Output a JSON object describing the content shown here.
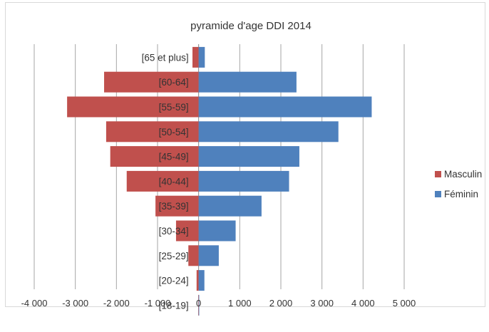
{
  "chart_data": {
    "type": "bar",
    "orientation": "horizontal",
    "title": "pyramide d'age DDI 2014",
    "categories": [
      "[65 et plus]",
      "[60-64]",
      "[55-59]",
      "[50-54]",
      "[45-49]",
      "[40-44]",
      "[35-39]",
      "[30-34]",
      "[25-29]",
      "[20-24]",
      "[18-19]"
    ],
    "series": [
      {
        "name": "Masculin",
        "color": "#c0504d",
        "values": [
          -150,
          -2300,
          -3200,
          -2250,
          -2150,
          -1750,
          -1050,
          -550,
          -250,
          -50,
          -10
        ]
      },
      {
        "name": "Féminin",
        "color": "#4f81bd",
        "values": [
          150,
          2380,
          4210,
          3400,
          2450,
          2200,
          1530,
          900,
          490,
          140,
          10
        ]
      }
    ],
    "xlim": [
      -4000,
      5000
    ],
    "xticks": [
      -4000,
      -3000,
      -2000,
      -1000,
      0,
      1000,
      2000,
      3000,
      4000,
      5000
    ],
    "xtick_labels": [
      "-4 000",
      "-3 000",
      "-2 000",
      "-1 000",
      "0",
      "1 000",
      "2 000",
      "3 000",
      "4 000",
      "5 000"
    ],
    "xlabel": "",
    "ylabel": "",
    "grid": "vertical",
    "legend_position": "right"
  }
}
